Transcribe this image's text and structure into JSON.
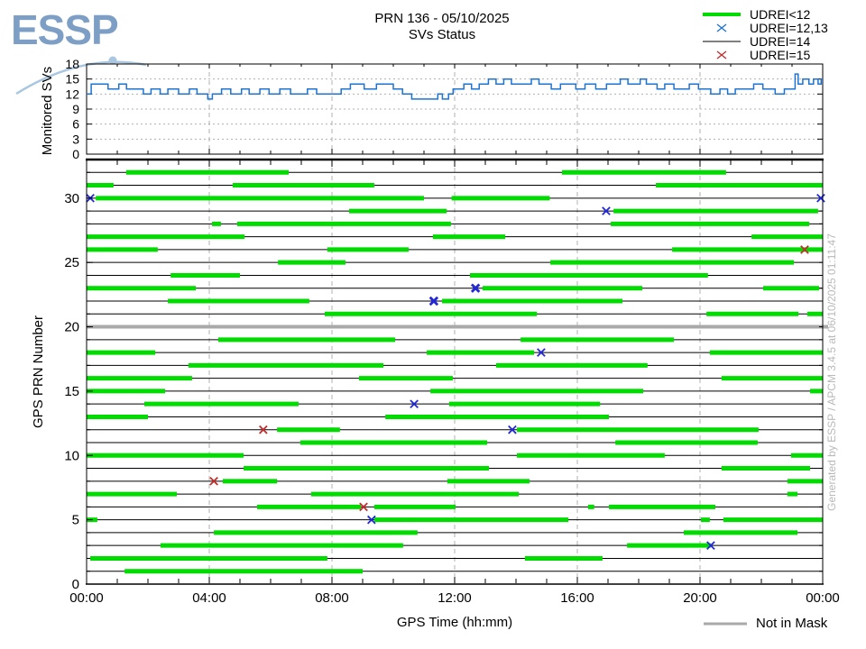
{
  "header": {
    "logo_text": "ESSP",
    "title_line1": "PRN 136 - 05/10/2025",
    "title_line2": "SVs Status"
  },
  "legend": {
    "items": [
      {
        "label": "UDREI<12",
        "swatch": "green-line"
      },
      {
        "label": "UDREI=12,13",
        "swatch": "blue-cross"
      },
      {
        "label": "UDREI=14",
        "swatch": "black-line"
      },
      {
        "label": "UDREI=15",
        "swatch": "red-cross"
      }
    ]
  },
  "footer": {
    "not_in_mask_label": "Not in Mask"
  },
  "watermark": "Generated by ESSP / APCM 3.4.5 at 06/10/2025 01:11:47",
  "colors": {
    "green": "#00dc00",
    "blue_line": "#1e74d4",
    "blue_marker": "#2228d8",
    "red_marker": "#c22e2e",
    "gray_mask": "#a9a9a9",
    "grid": "#b0b0b0",
    "axis": "#000000",
    "watermark": "#b9b9b9",
    "logo": "#7e9fc5",
    "logo_arc": "#a9c7e0"
  },
  "chart_data": [
    {
      "type": "line",
      "panel": "monitored",
      "title": "Monitored SVs",
      "ylabel": "Monitored SVs",
      "ylim": [
        0,
        18
      ],
      "yticks": [
        0,
        3,
        6,
        9,
        12,
        15,
        18
      ],
      "xlim_hours": [
        0,
        24
      ],
      "grid": true,
      "step_points": [
        [
          0,
          12
        ],
        [
          0.15,
          14
        ],
        [
          0.7,
          13
        ],
        [
          1.05,
          14
        ],
        [
          1.3,
          13
        ],
        [
          1.85,
          12
        ],
        [
          2.1,
          13
        ],
        [
          2.4,
          12
        ],
        [
          2.65,
          13
        ],
        [
          3.0,
          12
        ],
        [
          3.35,
          13
        ],
        [
          3.6,
          12
        ],
        [
          3.95,
          11
        ],
        [
          4.1,
          12
        ],
        [
          4.4,
          13
        ],
        [
          4.7,
          12
        ],
        [
          5.05,
          13
        ],
        [
          5.3,
          12
        ],
        [
          5.65,
          13
        ],
        [
          5.95,
          12
        ],
        [
          6.3,
          13
        ],
        [
          6.65,
          12
        ],
        [
          7.2,
          13
        ],
        [
          7.5,
          12
        ],
        [
          8.3,
          13
        ],
        [
          8.6,
          14
        ],
        [
          9.05,
          13
        ],
        [
          9.45,
          14
        ],
        [
          10.0,
          13
        ],
        [
          10.3,
          12
        ],
        [
          10.6,
          11
        ],
        [
          11.45,
          12
        ],
        [
          11.6,
          11
        ],
        [
          11.8,
          12
        ],
        [
          11.95,
          13
        ],
        [
          12.3,
          14
        ],
        [
          12.55,
          13
        ],
        [
          12.8,
          14
        ],
        [
          13.1,
          15
        ],
        [
          13.35,
          14
        ],
        [
          13.6,
          15
        ],
        [
          13.85,
          14
        ],
        [
          14.5,
          15
        ],
        [
          14.75,
          14
        ],
        [
          15.15,
          13
        ],
        [
          15.45,
          14
        ],
        [
          15.95,
          13
        ],
        [
          16.25,
          14
        ],
        [
          16.6,
          13
        ],
        [
          16.95,
          14
        ],
        [
          17.4,
          15
        ],
        [
          17.65,
          14
        ],
        [
          18.05,
          15
        ],
        [
          18.25,
          14
        ],
        [
          18.6,
          13
        ],
        [
          18.85,
          14
        ],
        [
          19.15,
          13
        ],
        [
          19.65,
          14
        ],
        [
          19.95,
          13
        ],
        [
          20.35,
          12
        ],
        [
          20.65,
          13
        ],
        [
          20.9,
          12
        ],
        [
          21.15,
          13
        ],
        [
          21.75,
          14
        ],
        [
          22.05,
          13
        ],
        [
          22.45,
          12
        ],
        [
          22.75,
          13
        ],
        [
          23.1,
          16
        ],
        [
          23.2,
          14
        ],
        [
          23.35,
          15
        ],
        [
          23.55,
          14
        ],
        [
          23.7,
          15
        ],
        [
          23.85,
          14
        ],
        [
          23.95,
          15
        ]
      ]
    },
    {
      "type": "timeline",
      "panel": "prn-status",
      "ylabel": "GPS PRN Number",
      "xlabel": "GPS Time (hh:mm)",
      "yticks": [
        0,
        5,
        10,
        15,
        20,
        25,
        30
      ],
      "ylim": [
        0,
        33
      ],
      "xticks": [
        {
          "h": 0,
          "label": "00:00"
        },
        {
          "h": 4,
          "label": "04:00"
        },
        {
          "h": 8,
          "label": "08:00"
        },
        {
          "h": 12,
          "label": "12:00"
        },
        {
          "h": 16,
          "label": "16:00"
        },
        {
          "h": 20,
          "label": "20:00"
        },
        {
          "h": 24,
          "label": "00:00"
        }
      ],
      "not_in_mask_prn": 20,
      "rows": [
        {
          "prn": 32,
          "segments": [
            [
              1.29,
              6.59
            ],
            [
              15.5,
              20.85
            ]
          ],
          "markers": []
        },
        {
          "prn": 31,
          "segments": [
            [
              0,
              0.88
            ],
            [
              4.76,
              9.38
            ],
            [
              18.56,
              24
            ]
          ],
          "markers": []
        },
        {
          "prn": 30,
          "segments": [
            [
              0.3,
              11.0
            ],
            [
              11.9,
              15.1
            ]
          ],
          "markers": [
            {
              "t": 0.12,
              "color": "blue"
            },
            {
              "t": 23.94,
              "color": "blue"
            }
          ]
        },
        {
          "prn": 29,
          "segments": [
            [
              8.56,
              11.74
            ],
            [
              17.18,
              23.85
            ]
          ],
          "markers": [
            {
              "t": 16.94,
              "color": "blue"
            }
          ]
        },
        {
          "prn": 28,
          "segments": [
            [
              4.09,
              4.38
            ],
            [
              4.91,
              11.88
            ],
            [
              17.09,
              23.56
            ]
          ],
          "markers": []
        },
        {
          "prn": 27,
          "segments": [
            [
              0,
              5.15
            ],
            [
              11.29,
              13.65
            ],
            [
              21.68,
              24
            ]
          ],
          "markers": []
        },
        {
          "prn": 26,
          "segments": [
            [
              0,
              2.32
            ],
            [
              7.85,
              10.5
            ],
            [
              19.09,
              24
            ]
          ],
          "markers": [
            {
              "t": 23.41,
              "color": "red"
            }
          ]
        },
        {
          "prn": 25,
          "segments": [
            [
              6.24,
              8.44
            ],
            [
              15.12,
              23.06
            ]
          ],
          "markers": []
        },
        {
          "prn": 24,
          "segments": [
            [
              2.74,
              5.0
            ],
            [
              12.5,
              20.26
            ]
          ],
          "markers": []
        },
        {
          "prn": 23,
          "segments": [
            [
              0,
              3.56
            ],
            [
              12.91,
              18.12
            ],
            [
              22.06,
              23.88
            ]
          ],
          "markers": [
            {
              "t": 12.68,
              "color": "blue",
              "bold": true
            }
          ]
        },
        {
          "prn": 22,
          "segments": [
            [
              2.65,
              7.26
            ],
            [
              11.59,
              17.47
            ]
          ],
          "markers": [
            {
              "t": 11.32,
              "color": "blue",
              "bold": true
            }
          ]
        },
        {
          "prn": 21,
          "segments": [
            [
              7.76,
              14.68
            ],
            [
              20.21,
              23.21
            ],
            [
              23.5,
              24
            ]
          ],
          "markers": []
        },
        {
          "prn": 20,
          "segments": [],
          "markers": [],
          "not_in_mask": true
        },
        {
          "prn": 19,
          "segments": [
            [
              4.29,
              10.06
            ],
            [
              14.15,
              19.15
            ]
          ],
          "markers": []
        },
        {
          "prn": 18,
          "segments": [
            [
              0,
              2.24
            ],
            [
              11.09,
              14.59
            ],
            [
              20.32,
              24
            ]
          ],
          "markers": [
            {
              "t": 14.82,
              "color": "blue"
            }
          ]
        },
        {
          "prn": 17,
          "segments": [
            [
              3.32,
              9.68
            ],
            [
              13.35,
              18.29
            ]
          ],
          "markers": []
        },
        {
          "prn": 16,
          "segments": [
            [
              0,
              3.44
            ],
            [
              8.88,
              11.94
            ],
            [
              20.7,
              24
            ]
          ],
          "markers": []
        },
        {
          "prn": 15,
          "segments": [
            [
              0,
              2.56
            ],
            [
              11.21,
              18.15
            ],
            [
              23.59,
              24
            ]
          ],
          "markers": []
        },
        {
          "prn": 14,
          "segments": [
            [
              1.88,
              6.91
            ],
            [
              11.82,
              16.74
            ]
          ],
          "markers": [
            {
              "t": 10.68,
              "color": "blue"
            }
          ]
        },
        {
          "prn": 13,
          "segments": [
            [
              0,
              2.0
            ],
            [
              9.74,
              17.03
            ]
          ],
          "markers": []
        },
        {
          "prn": 12,
          "segments": [
            [
              6.21,
              8.26
            ],
            [
              14.03,
              21.91
            ]
          ],
          "markers": [
            {
              "t": 5.76,
              "color": "red"
            },
            {
              "t": 13.88,
              "color": "blue"
            }
          ]
        },
        {
          "prn": 11,
          "segments": [
            [
              6.97,
              13.06
            ],
            [
              17.24,
              21.88
            ]
          ],
          "markers": []
        },
        {
          "prn": 10,
          "segments": [
            [
              0,
              5.12
            ],
            [
              14.03,
              18.85
            ],
            [
              22.97,
              24
            ]
          ],
          "markers": []
        },
        {
          "prn": 9,
          "segments": [
            [
              5.12,
              13.12
            ],
            [
              20.7,
              23.59
            ]
          ],
          "markers": []
        },
        {
          "prn": 8,
          "segments": [
            [
              4.44,
              6.21
            ],
            [
              11.76,
              14.44
            ],
            [
              22.85,
              24
            ]
          ],
          "markers": [
            {
              "t": 4.15,
              "color": "red"
            }
          ]
        },
        {
          "prn": 7,
          "segments": [
            [
              0,
              2.94
            ],
            [
              7.32,
              14.09
            ],
            [
              22.85,
              23.18
            ]
          ],
          "markers": []
        },
        {
          "prn": 6,
          "segments": [
            [
              5.56,
              8.94
            ],
            [
              9.38,
              12.03
            ],
            [
              16.35,
              16.55
            ],
            [
              17.03,
              20.5
            ]
          ],
          "markers": [
            {
              "t": 9.03,
              "color": "red"
            }
          ]
        },
        {
          "prn": 5,
          "segments": [
            [
              0,
              0.35
            ],
            [
              9.38,
              15.71
            ],
            [
              20.03,
              20.32
            ],
            [
              20.76,
              24
            ]
          ],
          "markers": [
            {
              "t": 9.29,
              "color": "blue"
            }
          ]
        },
        {
          "prn": 4,
          "segments": [
            [
              4.15,
              10.79
            ],
            [
              19.47,
              23.18
            ]
          ],
          "markers": []
        },
        {
          "prn": 3,
          "segments": [
            [
              2.41,
              10.32
            ],
            [
              17.62,
              20.35
            ]
          ],
          "markers": [
            {
              "t": 20.35,
              "color": "blue"
            }
          ]
        },
        {
          "prn": 2,
          "segments": [
            [
              0.12,
              7.85
            ],
            [
              14.29,
              16.82
            ]
          ],
          "markers": []
        },
        {
          "prn": 1,
          "segments": [
            [
              1.24,
              9.0
            ]
          ],
          "markers": []
        }
      ]
    }
  ]
}
